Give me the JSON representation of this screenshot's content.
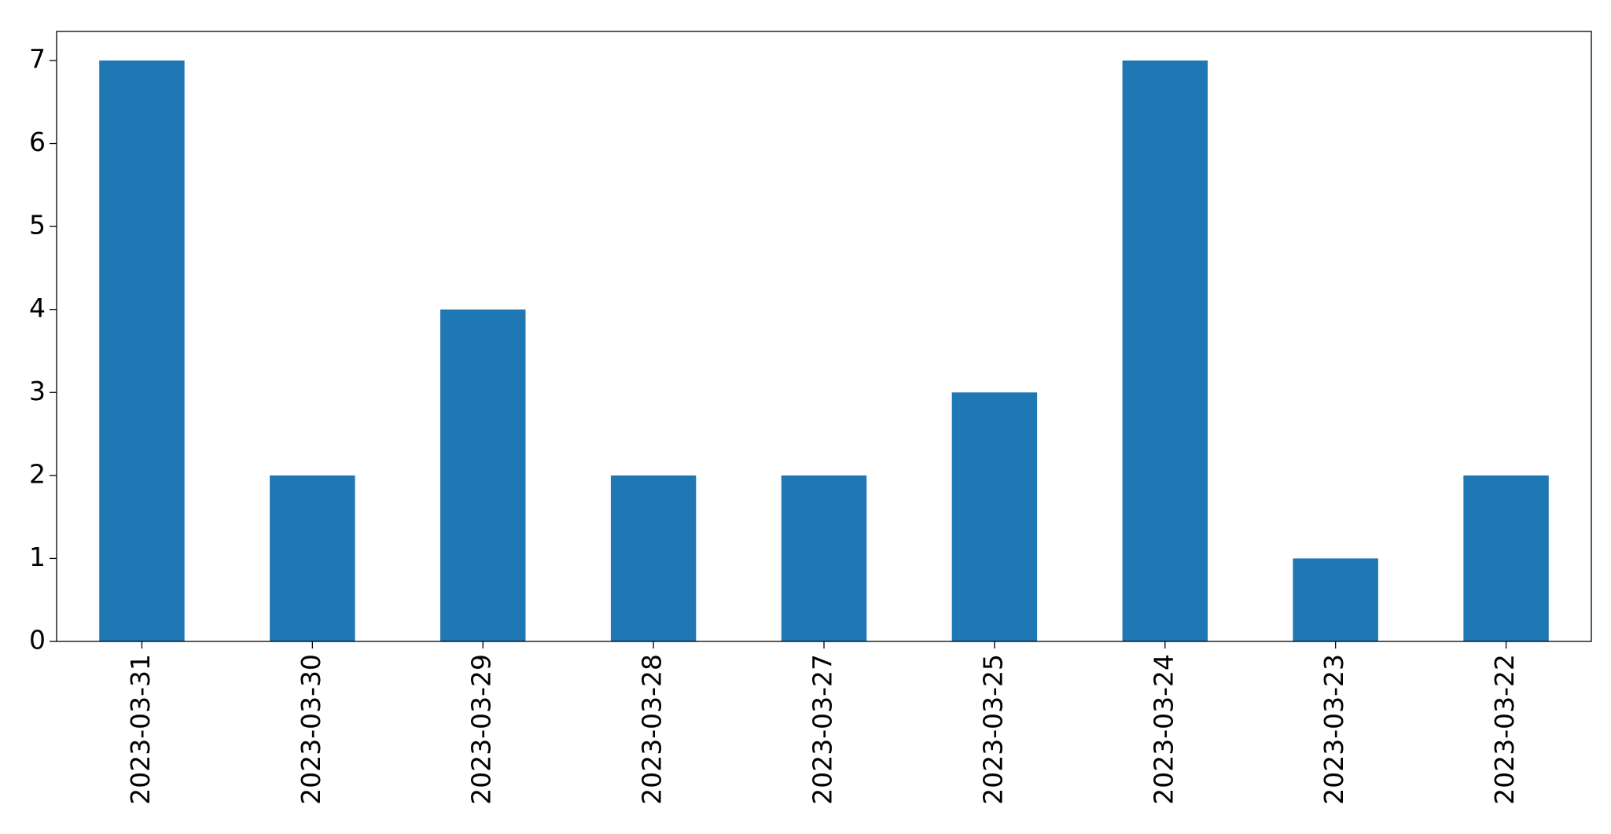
{
  "chart_data": {
    "type": "bar",
    "categories": [
      "2023-03-31",
      "2023-03-30",
      "2023-03-29",
      "2023-03-28",
      "2023-03-27",
      "2023-03-25",
      "2023-03-24",
      "2023-03-23",
      "2023-03-22"
    ],
    "values": [
      7,
      2,
      4,
      2,
      2,
      3,
      7,
      1,
      2
    ],
    "color": "#1f77b4",
    "ylim": [
      0,
      7.35
    ],
    "yticks": [
      0,
      1,
      2,
      3,
      4,
      5,
      6,
      7
    ],
    "grid": false
  }
}
